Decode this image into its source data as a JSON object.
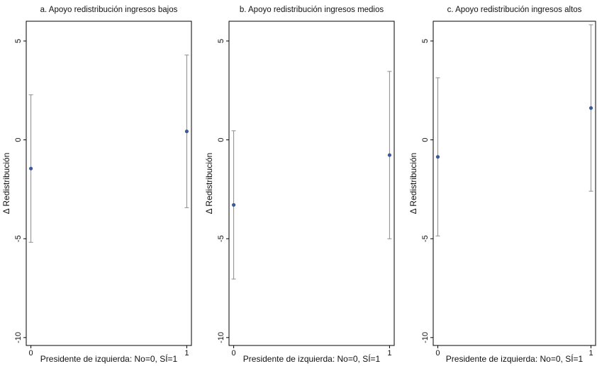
{
  "chart_data": [
    {
      "type": "errorbar",
      "title": "a. Apoyo redistribución ingresos bajos",
      "x_label": "Presidente de izquierda: No=0, SÍ=1",
      "y_label": "Δ Redistribución",
      "x": [
        0,
        1
      ],
      "values": [
        -1.45,
        0.43
      ],
      "errors": [
        3.73,
        3.86
      ],
      "color": "#3a5a9f",
      "error_color": "#8c8c8c",
      "xlim": [
        -0.03,
        1.03
      ],
      "xticks": [
        0,
        1
      ],
      "ylim": [
        -10.4,
        6
      ],
      "yticks": [
        -10,
        -5,
        0,
        5
      ]
    },
    {
      "type": "errorbar",
      "title": "b. Apoyo redistribución ingresos medios",
      "x_label": "Presidente de izquierda: No=0, SÍ=1",
      "y_label": "Δ Redistribución",
      "x": [
        0,
        1
      ],
      "values": [
        -3.29,
        -0.77
      ],
      "errors": [
        3.75,
        4.23
      ],
      "color": "#3a5a9f",
      "error_color": "#8c8c8c",
      "xlim": [
        -0.03,
        1.03
      ],
      "xticks": [
        0,
        1
      ],
      "ylim": [
        -10.4,
        6
      ],
      "yticks": [
        -10,
        -5,
        0,
        5
      ]
    },
    {
      "type": "errorbar",
      "title": "c. Apoyo redistribución ingresos altos",
      "x_label": "Presidente de izquierda: No=0, SÍ=1",
      "y_label": "Δ Redistribución",
      "x": [
        0,
        1
      ],
      "values": [
        -0.86,
        1.61
      ],
      "errors": [
        4.0,
        4.21
      ],
      "color": "#3a5a9f",
      "error_color": "#8c8c8c",
      "xlim": [
        -0.03,
        1.03
      ],
      "xticks": [
        0,
        1
      ],
      "ylim": [
        -10.4,
        6
      ],
      "yticks": [
        -10,
        -5,
        0,
        5
      ]
    }
  ]
}
